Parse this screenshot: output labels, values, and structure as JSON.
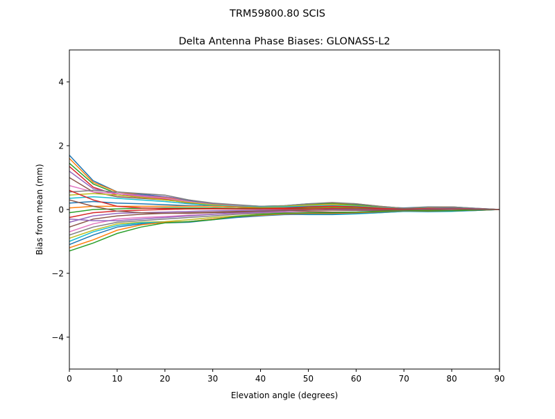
{
  "chart_data": {
    "type": "line",
    "suptitle": "TRM59800.80     SCIS",
    "title": "Delta Antenna Phase Biases: GLONASS-L2",
    "xlabel": "Elevation angle (degrees)",
    "ylabel": "Bias from mean (mm)",
    "xlim": [
      0,
      90
    ],
    "ylim": [
      -5,
      5
    ],
    "xticks": [
      0,
      10,
      20,
      30,
      40,
      50,
      60,
      70,
      80,
      90
    ],
    "yticks": [
      -4,
      -2,
      0,
      2,
      4
    ],
    "ytick_labels": [
      "−4",
      "−2",
      "0",
      "2",
      "4"
    ],
    "grid": false,
    "colors": [
      "#1f77b4",
      "#ff7f0e",
      "#2ca02c",
      "#d62728",
      "#9467bd",
      "#8c564b",
      "#e377c2",
      "#7f7f7f",
      "#bcbd22",
      "#17becf"
    ],
    "x": [
      0,
      5,
      10,
      15,
      20,
      25,
      30,
      35,
      40,
      45,
      50,
      55,
      60,
      65,
      70,
      75,
      80,
      85,
      90
    ],
    "series": [
      [
        1.7,
        0.9,
        0.55,
        0.48,
        0.4,
        0.28,
        0.15,
        0.12,
        0.1,
        0.12,
        0.18,
        0.2,
        0.15,
        0.08,
        0.05,
        0.08,
        0.08,
        0.04,
        0
      ],
      [
        1.6,
        0.85,
        0.55,
        0.45,
        0.38,
        0.25,
        0.15,
        0.1,
        0.08,
        0.1,
        0.15,
        0.2,
        0.18,
        0.1,
        0.04,
        0.07,
        0.08,
        0.03,
        0
      ],
      [
        1.45,
        0.8,
        0.5,
        0.42,
        0.35,
        0.22,
        0.12,
        0.1,
        0.08,
        0.1,
        0.16,
        0.18,
        0.14,
        0.08,
        0.03,
        0.06,
        0.06,
        0.03,
        0
      ],
      [
        1.35,
        0.7,
        0.45,
        0.4,
        0.32,
        0.2,
        0.1,
        0.08,
        0.06,
        0.08,
        0.12,
        0.15,
        0.12,
        0.06,
        0.02,
        0.05,
        0.05,
        0.02,
        0
      ],
      [
        1.2,
        0.65,
        0.5,
        0.45,
        0.4,
        0.3,
        0.18,
        0.14,
        0.1,
        0.1,
        0.14,
        0.16,
        0.12,
        0.06,
        0.02,
        0.06,
        0.07,
        0.03,
        0
      ],
      [
        1.0,
        0.55,
        0.4,
        0.35,
        0.3,
        0.22,
        0.15,
        0.12,
        0.1,
        0.08,
        0.1,
        0.12,
        0.1,
        0.05,
        0.02,
        0.04,
        0.05,
        0.02,
        0
      ],
      [
        0.75,
        0.55,
        0.5,
        0.42,
        0.35,
        0.25,
        0.15,
        0.12,
        0.1,
        0.1,
        0.12,
        0.14,
        0.1,
        0.06,
        0.03,
        0.05,
        0.06,
        0.02,
        0
      ],
      [
        0.55,
        0.6,
        0.55,
        0.5,
        0.45,
        0.3,
        0.2,
        0.15,
        0.1,
        0.12,
        0.18,
        0.22,
        0.18,
        0.1,
        0.04,
        0.06,
        0.08,
        0.04,
        0
      ],
      [
        0.45,
        0.5,
        0.45,
        0.38,
        0.3,
        0.22,
        0.15,
        0.1,
        0.08,
        0.1,
        0.14,
        0.16,
        0.12,
        0.06,
        0.02,
        0.04,
        0.05,
        0.02,
        0
      ],
      [
        0.35,
        0.4,
        0.35,
        0.3,
        0.25,
        0.18,
        0.12,
        0.1,
        0.08,
        0.08,
        0.1,
        0.12,
        0.1,
        0.05,
        0.02,
        0.04,
        0.05,
        0.02,
        0
      ],
      [
        0.2,
        0.25,
        0.2,
        0.18,
        0.15,
        0.12,
        0.1,
        0.08,
        0.06,
        0.06,
        0.08,
        0.1,
        0.08,
        0.04,
        0.02,
        0.03,
        0.04,
        0.02,
        0
      ],
      [
        0.05,
        0.1,
        0.1,
        0.1,
        0.1,
        0.1,
        0.1,
        0.08,
        0.06,
        0.05,
        0.06,
        0.08,
        0.06,
        0.03,
        0.01,
        0.03,
        0.03,
        0.01,
        0
      ],
      [
        -0.1,
        0.0,
        0.02,
        0.04,
        0.05,
        0.05,
        0.05,
        0.04,
        0.04,
        0.03,
        0.04,
        0.05,
        0.04,
        0.02,
        0,
        0.02,
        0.03,
        0.01,
        0
      ],
      [
        -0.25,
        -0.1,
        -0.05,
        -0.02,
        0,
        0.02,
        0.03,
        0.02,
        0.02,
        0.01,
        0.02,
        0.03,
        0.02,
        0.01,
        0,
        0.01,
        0.02,
        0,
        0
      ],
      [
        -0.4,
        -0.2,
        -0.12,
        -0.1,
        -0.08,
        -0.06,
        -0.04,
        -0.03,
        -0.02,
        -0.02,
        -0.02,
        -0.02,
        -0.03,
        -0.03,
        -0.02,
        0,
        0.01,
        0,
        0
      ],
      [
        -0.55,
        -0.3,
        -0.2,
        -0.15,
        -0.12,
        -0.1,
        -0.08,
        -0.06,
        -0.05,
        -0.04,
        -0.06,
        -0.08,
        -0.08,
        -0.05,
        -0.03,
        -0.02,
        -0.02,
        -0.01,
        0
      ],
      [
        -0.7,
        -0.45,
        -0.3,
        -0.25,
        -0.22,
        -0.18,
        -0.15,
        -0.12,
        -0.1,
        -0.08,
        -0.1,
        -0.12,
        -0.1,
        -0.07,
        -0.04,
        -0.04,
        -0.03,
        -0.02,
        0
      ],
      [
        -0.8,
        -0.55,
        -0.4,
        -0.35,
        -0.3,
        -0.25,
        -0.2,
        -0.15,
        -0.12,
        -0.1,
        -0.12,
        -0.14,
        -0.12,
        -0.08,
        -0.05,
        -0.05,
        -0.04,
        -0.02,
        0
      ],
      [
        -0.9,
        -0.65,
        -0.45,
        -0.4,
        -0.38,
        -0.32,
        -0.25,
        -0.2,
        -0.15,
        -0.12,
        -0.14,
        -0.15,
        -0.13,
        -0.1,
        -0.06,
        -0.06,
        -0.05,
        -0.03,
        0
      ],
      [
        -1.0,
        -0.7,
        -0.5,
        -0.42,
        -0.4,
        -0.38,
        -0.3,
        -0.22,
        -0.18,
        -0.15,
        -0.16,
        -0.16,
        -0.14,
        -0.1,
        -0.06,
        -0.07,
        -0.06,
        -0.03,
        0
      ],
      [
        -1.1,
        -0.8,
        -0.55,
        -0.45,
        -0.42,
        -0.4,
        -0.32,
        -0.25,
        -0.2,
        -0.16,
        -0.15,
        -0.15,
        -0.12,
        -0.09,
        -0.05,
        -0.06,
        -0.05,
        -0.03,
        0
      ],
      [
        -1.2,
        -0.95,
        -0.65,
        -0.48,
        -0.4,
        -0.38,
        -0.3,
        -0.22,
        -0.18,
        -0.14,
        -0.12,
        -0.12,
        -0.1,
        -0.07,
        -0.04,
        -0.05,
        -0.04,
        -0.02,
        0
      ],
      [
        -1.3,
        -1.05,
        -0.75,
        -0.55,
        -0.42,
        -0.38,
        -0.32,
        -0.22,
        -0.16,
        -0.12,
        -0.1,
        -0.1,
        -0.08,
        -0.06,
        -0.03,
        -0.04,
        -0.04,
        -0.02,
        0
      ],
      [
        0.6,
        0.3,
        0.1,
        0.05,
        0.03,
        0.02,
        0.02,
        0.02,
        0.02,
        0.04,
        0.08,
        0.1,
        0.08,
        0.04,
        0.01,
        0.03,
        0.04,
        0.02,
        0
      ],
      [
        -0.3,
        -0.35,
        -0.35,
        -0.3,
        -0.25,
        -0.2,
        -0.15,
        -0.1,
        -0.08,
        -0.05,
        -0.02,
        0.0,
        0.0,
        -0.01,
        -0.01,
        0.01,
        0.02,
        0.01,
        0
      ],
      [
        0.3,
        0.1,
        -0.05,
        -0.1,
        -0.12,
        -0.12,
        -0.1,
        -0.08,
        -0.05,
        -0.03,
        -0.02,
        -0.02,
        -0.02,
        -0.02,
        -0.01,
        0,
        0.01,
        0,
        0
      ]
    ]
  }
}
